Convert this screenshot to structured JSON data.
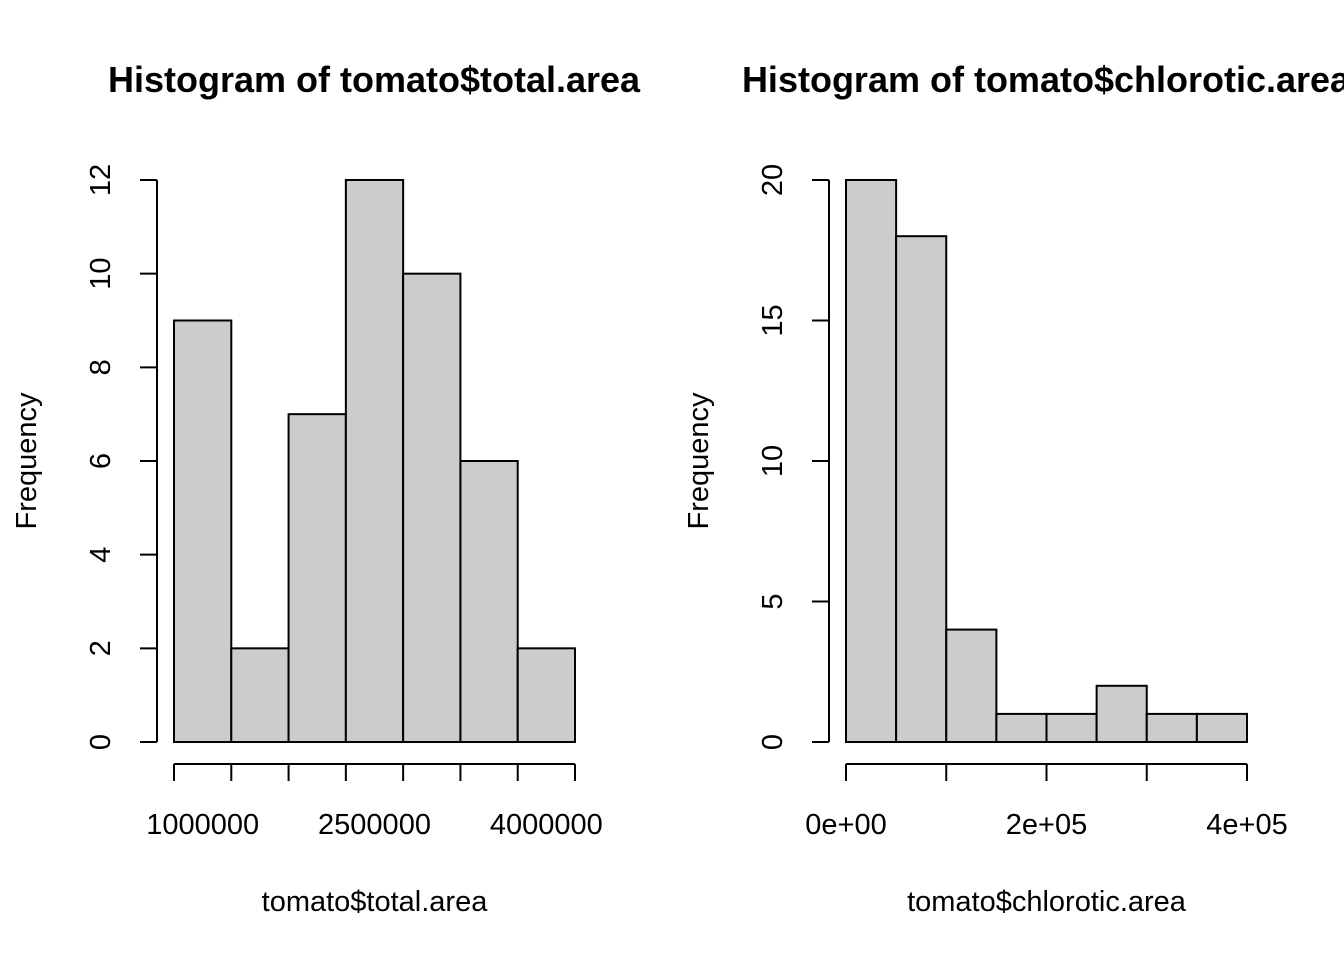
{
  "chart_data": [
    {
      "type": "bar",
      "title": "Histogram of tomato$total.area",
      "xlabel": "tomato$total.area",
      "ylabel": "Frequency",
      "bins": [
        {
          "from": 750000,
          "to": 1250000,
          "count": 9
        },
        {
          "from": 1250000,
          "to": 1750000,
          "count": 2
        },
        {
          "from": 1750000,
          "to": 2250000,
          "count": 7
        },
        {
          "from": 2250000,
          "to": 2750000,
          "count": 12
        },
        {
          "from": 2750000,
          "to": 3250000,
          "count": 10
        },
        {
          "from": 3250000,
          "to": 3750000,
          "count": 6
        },
        {
          "from": 3750000,
          "to": 4250000,
          "count": 2
        }
      ],
      "xlim": [
        750000,
        4250000
      ],
      "ylim": [
        0,
        12
      ],
      "x_ticks": [
        750000,
        1250000,
        1750000,
        2250000,
        2750000,
        3250000,
        3750000,
        4250000
      ],
      "x_tick_labels": [
        {
          "value": 1000000,
          "label": "1000000"
        },
        {
          "value": 2500000,
          "label": "2500000"
        },
        {
          "value": 4000000,
          "label": "4000000"
        }
      ],
      "y_ticks": [
        0,
        2,
        4,
        6,
        8,
        10,
        12
      ],
      "grid": false
    },
    {
      "type": "bar",
      "title": "Histogram of tomato$chlorotic.area",
      "xlabel": "tomato$chlorotic.area",
      "ylabel": "Frequency",
      "bins": [
        {
          "from": 0,
          "to": 50000,
          "count": 20
        },
        {
          "from": 50000,
          "to": 100000,
          "count": 18
        },
        {
          "from": 100000,
          "to": 150000,
          "count": 4
        },
        {
          "from": 150000,
          "to": 200000,
          "count": 1
        },
        {
          "from": 200000,
          "to": 250000,
          "count": 1
        },
        {
          "from": 250000,
          "to": 300000,
          "count": 2
        },
        {
          "from": 300000,
          "to": 350000,
          "count": 1
        },
        {
          "from": 350000,
          "to": 400000,
          "count": 1
        }
      ],
      "xlim": [
        0,
        400000
      ],
      "ylim": [
        0,
        20
      ],
      "x_ticks": [
        0,
        100000,
        200000,
        300000,
        400000
      ],
      "x_tick_labels": [
        {
          "value": 0,
          "label": "0e+00"
        },
        {
          "value": 200000,
          "label": "2e+05"
        },
        {
          "value": 400000,
          "label": "4e+05"
        }
      ],
      "y_ticks": [
        0,
        5,
        10,
        15,
        20
      ],
      "grid": false
    }
  ]
}
